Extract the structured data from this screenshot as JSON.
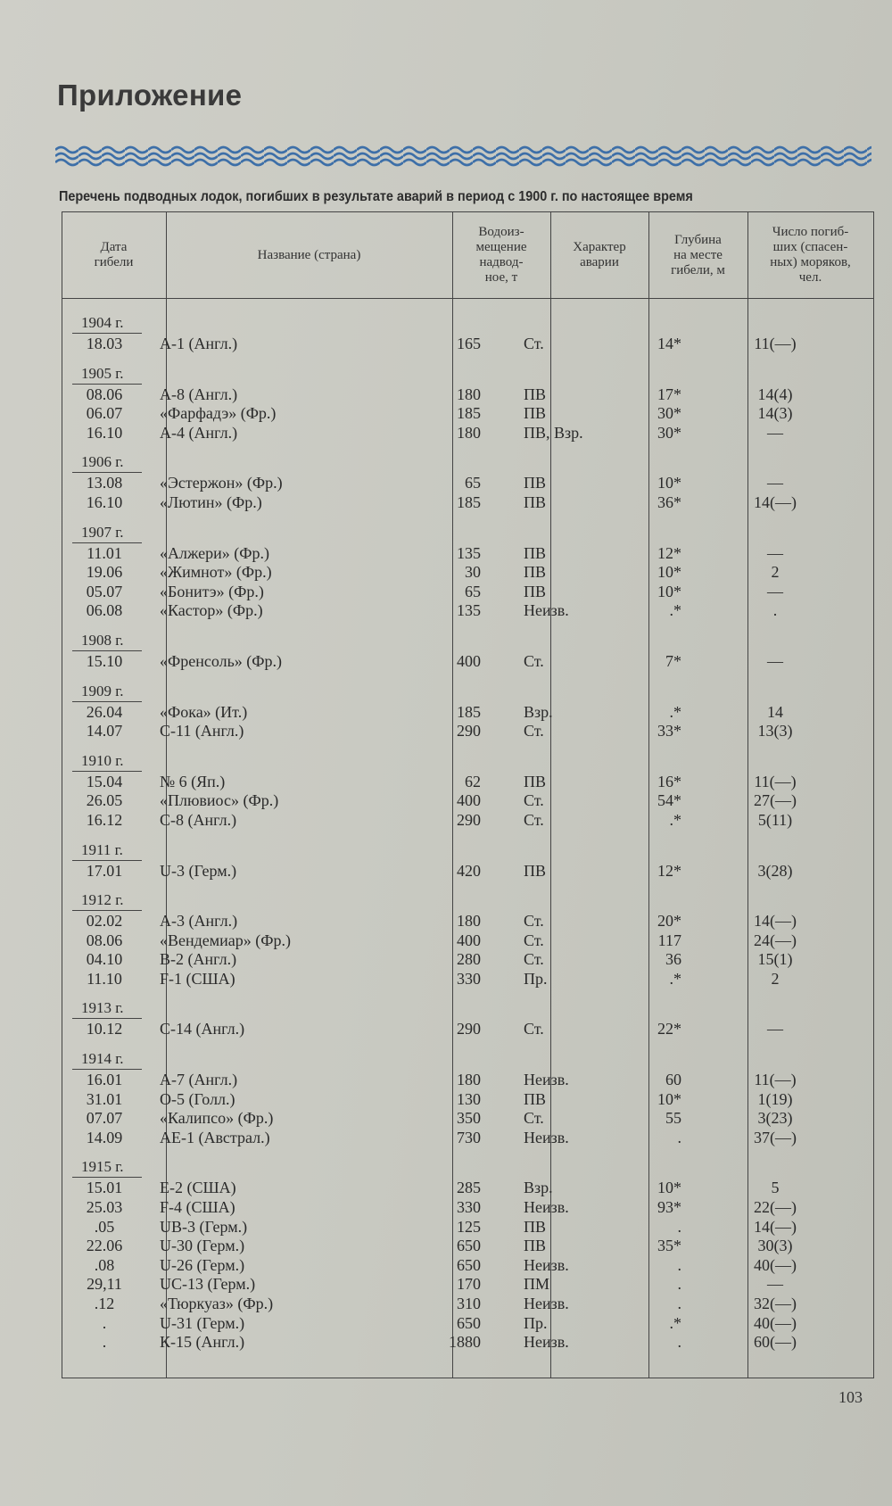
{
  "page": {
    "title": "Приложение",
    "subtitle": "Перечень подводных лодок, погибших в результате аварий в период с 1900 г. по настоящее время",
    "page_number": "103",
    "colors": {
      "wave": "#3d6fa8",
      "paper": "#c9c9c1",
      "ink": "#2a2a2a"
    }
  },
  "table": {
    "headers": [
      "Дата\nгибели",
      "Название (страна)",
      "Водоиз-\nмещение\nнадвод-\nное, т",
      "Характер\nаварии",
      "Глубина\nна месте\nгибели, м",
      "Число погиб-\nших (спасен-\nных) моряков,\nчел."
    ],
    "groups": [
      {
        "year": "1904 г.",
        "rows": [
          {
            "date": "18.03",
            "name": "А-1 (Англ.)",
            "disp": "165",
            "type": "Ст.",
            "depth": "14*",
            "crew": "11(—)"
          }
        ]
      },
      {
        "year": "1905 г.",
        "rows": [
          {
            "date": "08.06",
            "name": "А-8 (Англ.)",
            "disp": "180",
            "type": "ПВ",
            "depth": "17*",
            "crew": "14(4)"
          },
          {
            "date": "06.07",
            "name": "«Фарфадэ» (Фр.)",
            "disp": "185",
            "type": "ПВ",
            "depth": "30*",
            "crew": "14(3)"
          },
          {
            "date": "16.10",
            "name": "А-4 (Англ.)",
            "disp": "180",
            "type": "ПВ, Взр.",
            "depth": "30*",
            "crew": "—"
          }
        ]
      },
      {
        "year": "1906 г.",
        "rows": [
          {
            "date": "13.08",
            "name": "«Эстержон» (Фр.)",
            "disp": "65",
            "type": "ПВ",
            "depth": "10*",
            "crew": "—"
          },
          {
            "date": "16.10",
            "name": "«Лютин» (Фр.)",
            "disp": "185",
            "type": "ПВ",
            "depth": "36*",
            "crew": "14(—)"
          }
        ]
      },
      {
        "year": "1907 г.",
        "rows": [
          {
            "date": "11.01",
            "name": "«Алжери» (Фр.)",
            "disp": "135",
            "type": "ПВ",
            "depth": "12*",
            "crew": "—"
          },
          {
            "date": "19.06",
            "name": "«Жимнот» (Фр.)",
            "disp": "30",
            "type": "ПВ",
            "depth": "10*",
            "crew": "2"
          },
          {
            "date": "05.07",
            "name": "«Бонитэ» (Фр.)",
            "disp": "65",
            "type": "ПВ",
            "depth": "10*",
            "crew": "—"
          },
          {
            "date": "06.08",
            "name": "«Кастор» (Фр.)",
            "disp": "135",
            "type": "Неизв.",
            "depth": ".*",
            "crew": "."
          }
        ]
      },
      {
        "year": "1908 г.",
        "rows": [
          {
            "date": "15.10",
            "name": "«Френсоль» (Фр.)",
            "disp": "400",
            "type": "Ст.",
            "depth": "7*",
            "crew": "—"
          }
        ]
      },
      {
        "year": "1909 г.",
        "rows": [
          {
            "date": "26.04",
            "name": "«Фока» (Ит.)",
            "disp": "185",
            "type": "Взр.",
            "depth": ".*",
            "crew": "14"
          },
          {
            "date": "14.07",
            "name": "С-11 (Англ.)",
            "disp": "290",
            "type": "Ст.",
            "depth": "33*",
            "crew": "13(3)"
          }
        ]
      },
      {
        "year": "1910 г.",
        "rows": [
          {
            "date": "15.04",
            "name": "№ 6 (Яп.)",
            "disp": "62",
            "type": "ПВ",
            "depth": "16*",
            "crew": "11(—)"
          },
          {
            "date": "26.05",
            "name": "«Плювиос» (Фр.)",
            "disp": "400",
            "type": "Ст.",
            "depth": "54*",
            "crew": "27(—)"
          },
          {
            "date": "16.12",
            "name": "С-8 (Англ.)",
            "disp": "290",
            "type": "Ст.",
            "depth": ".*",
            "crew": "5(11)"
          }
        ]
      },
      {
        "year": "1911 г.",
        "rows": [
          {
            "date": "17.01",
            "name": "U-3 (Герм.)",
            "disp": "420",
            "type": "ПВ",
            "depth": "12*",
            "crew": "3(28)"
          }
        ]
      },
      {
        "year": "1912 г.",
        "rows": [
          {
            "date": "02.02",
            "name": "А-3 (Англ.)",
            "disp": "180",
            "type": "Ст.",
            "depth": "20*",
            "crew": "14(—)"
          },
          {
            "date": "08.06",
            "name": "«Вендемиар» (Фр.)",
            "disp": "400",
            "type": "Ст.",
            "depth": "117",
            "crew": "24(—)"
          },
          {
            "date": "04.10",
            "name": "В-2 (Англ.)",
            "disp": "280",
            "type": "Ст.",
            "depth": "36",
            "crew": "15(1)"
          },
          {
            "date": "11.10",
            "name": "F-1 (США)",
            "disp": "330",
            "type": "Пр.",
            "depth": ".*",
            "crew": "2"
          }
        ]
      },
      {
        "year": "1913 г.",
        "rows": [
          {
            "date": "10.12",
            "name": "С-14 (Англ.)",
            "disp": "290",
            "type": "Ст.",
            "depth": "22*",
            "crew": "—"
          }
        ]
      },
      {
        "year": "1914 г.",
        "rows": [
          {
            "date": "16.01",
            "name": "А-7 (Англ.)",
            "disp": "180",
            "type": "Неизв.",
            "depth": "60",
            "crew": "11(—)"
          },
          {
            "date": "31.01",
            "name": "О-5 (Голл.)",
            "disp": "130",
            "type": "ПВ",
            "depth": "10*",
            "crew": "1(19)"
          },
          {
            "date": "07.07",
            "name": "«Калипсо» (Фр.)",
            "disp": "350",
            "type": "Ст.",
            "depth": "55",
            "crew": "3(23)"
          },
          {
            "date": "14.09",
            "name": "АЕ-1 (Австрал.)",
            "disp": "730",
            "type": "Неизв.",
            "depth": ".",
            "crew": "37(—)"
          }
        ]
      },
      {
        "year": "1915 г.",
        "rows": [
          {
            "date": "15.01",
            "name": "Е-2 (США)",
            "disp": "285",
            "type": "Взр.",
            "depth": "10*",
            "crew": "5"
          },
          {
            "date": "25.03",
            "name": "F-4 (США)",
            "disp": "330",
            "type": "Неизв.",
            "depth": "93*",
            "crew": "22(—)"
          },
          {
            "date": ".05",
            "name": "UB-3 (Герм.)",
            "disp": "125",
            "type": "ПВ",
            "depth": ".",
            "crew": "14(—)"
          },
          {
            "date": "22.06",
            "name": "U-30 (Герм.)",
            "disp": "650",
            "type": "ПВ",
            "depth": "35*",
            "crew": "30(3)"
          },
          {
            "date": ".08",
            "name": "U-26 (Герм.)",
            "disp": "650",
            "type": "Неизв.",
            "depth": ".",
            "crew": "40(—)"
          },
          {
            "date": "29,11",
            "name": "UC-13 (Герм.)",
            "disp": "170",
            "type": "ПМ",
            "depth": ".",
            "crew": "—"
          },
          {
            "date": ".12",
            "name": "«Тюркуаз» (Фр.)",
            "disp": "310",
            "type": "Неизв.",
            "depth": ".",
            "crew": "32(—)"
          },
          {
            "date": ".",
            "name": "U-31 (Герм.)",
            "disp": "650",
            "type": "Пр.",
            "depth": ".*",
            "crew": "40(—)"
          },
          {
            "date": ".",
            "name": "К-15 (Англ.)",
            "disp": "1880",
            "type": "Неизв.",
            "depth": ".",
            "crew": "60(—)"
          }
        ]
      }
    ]
  }
}
